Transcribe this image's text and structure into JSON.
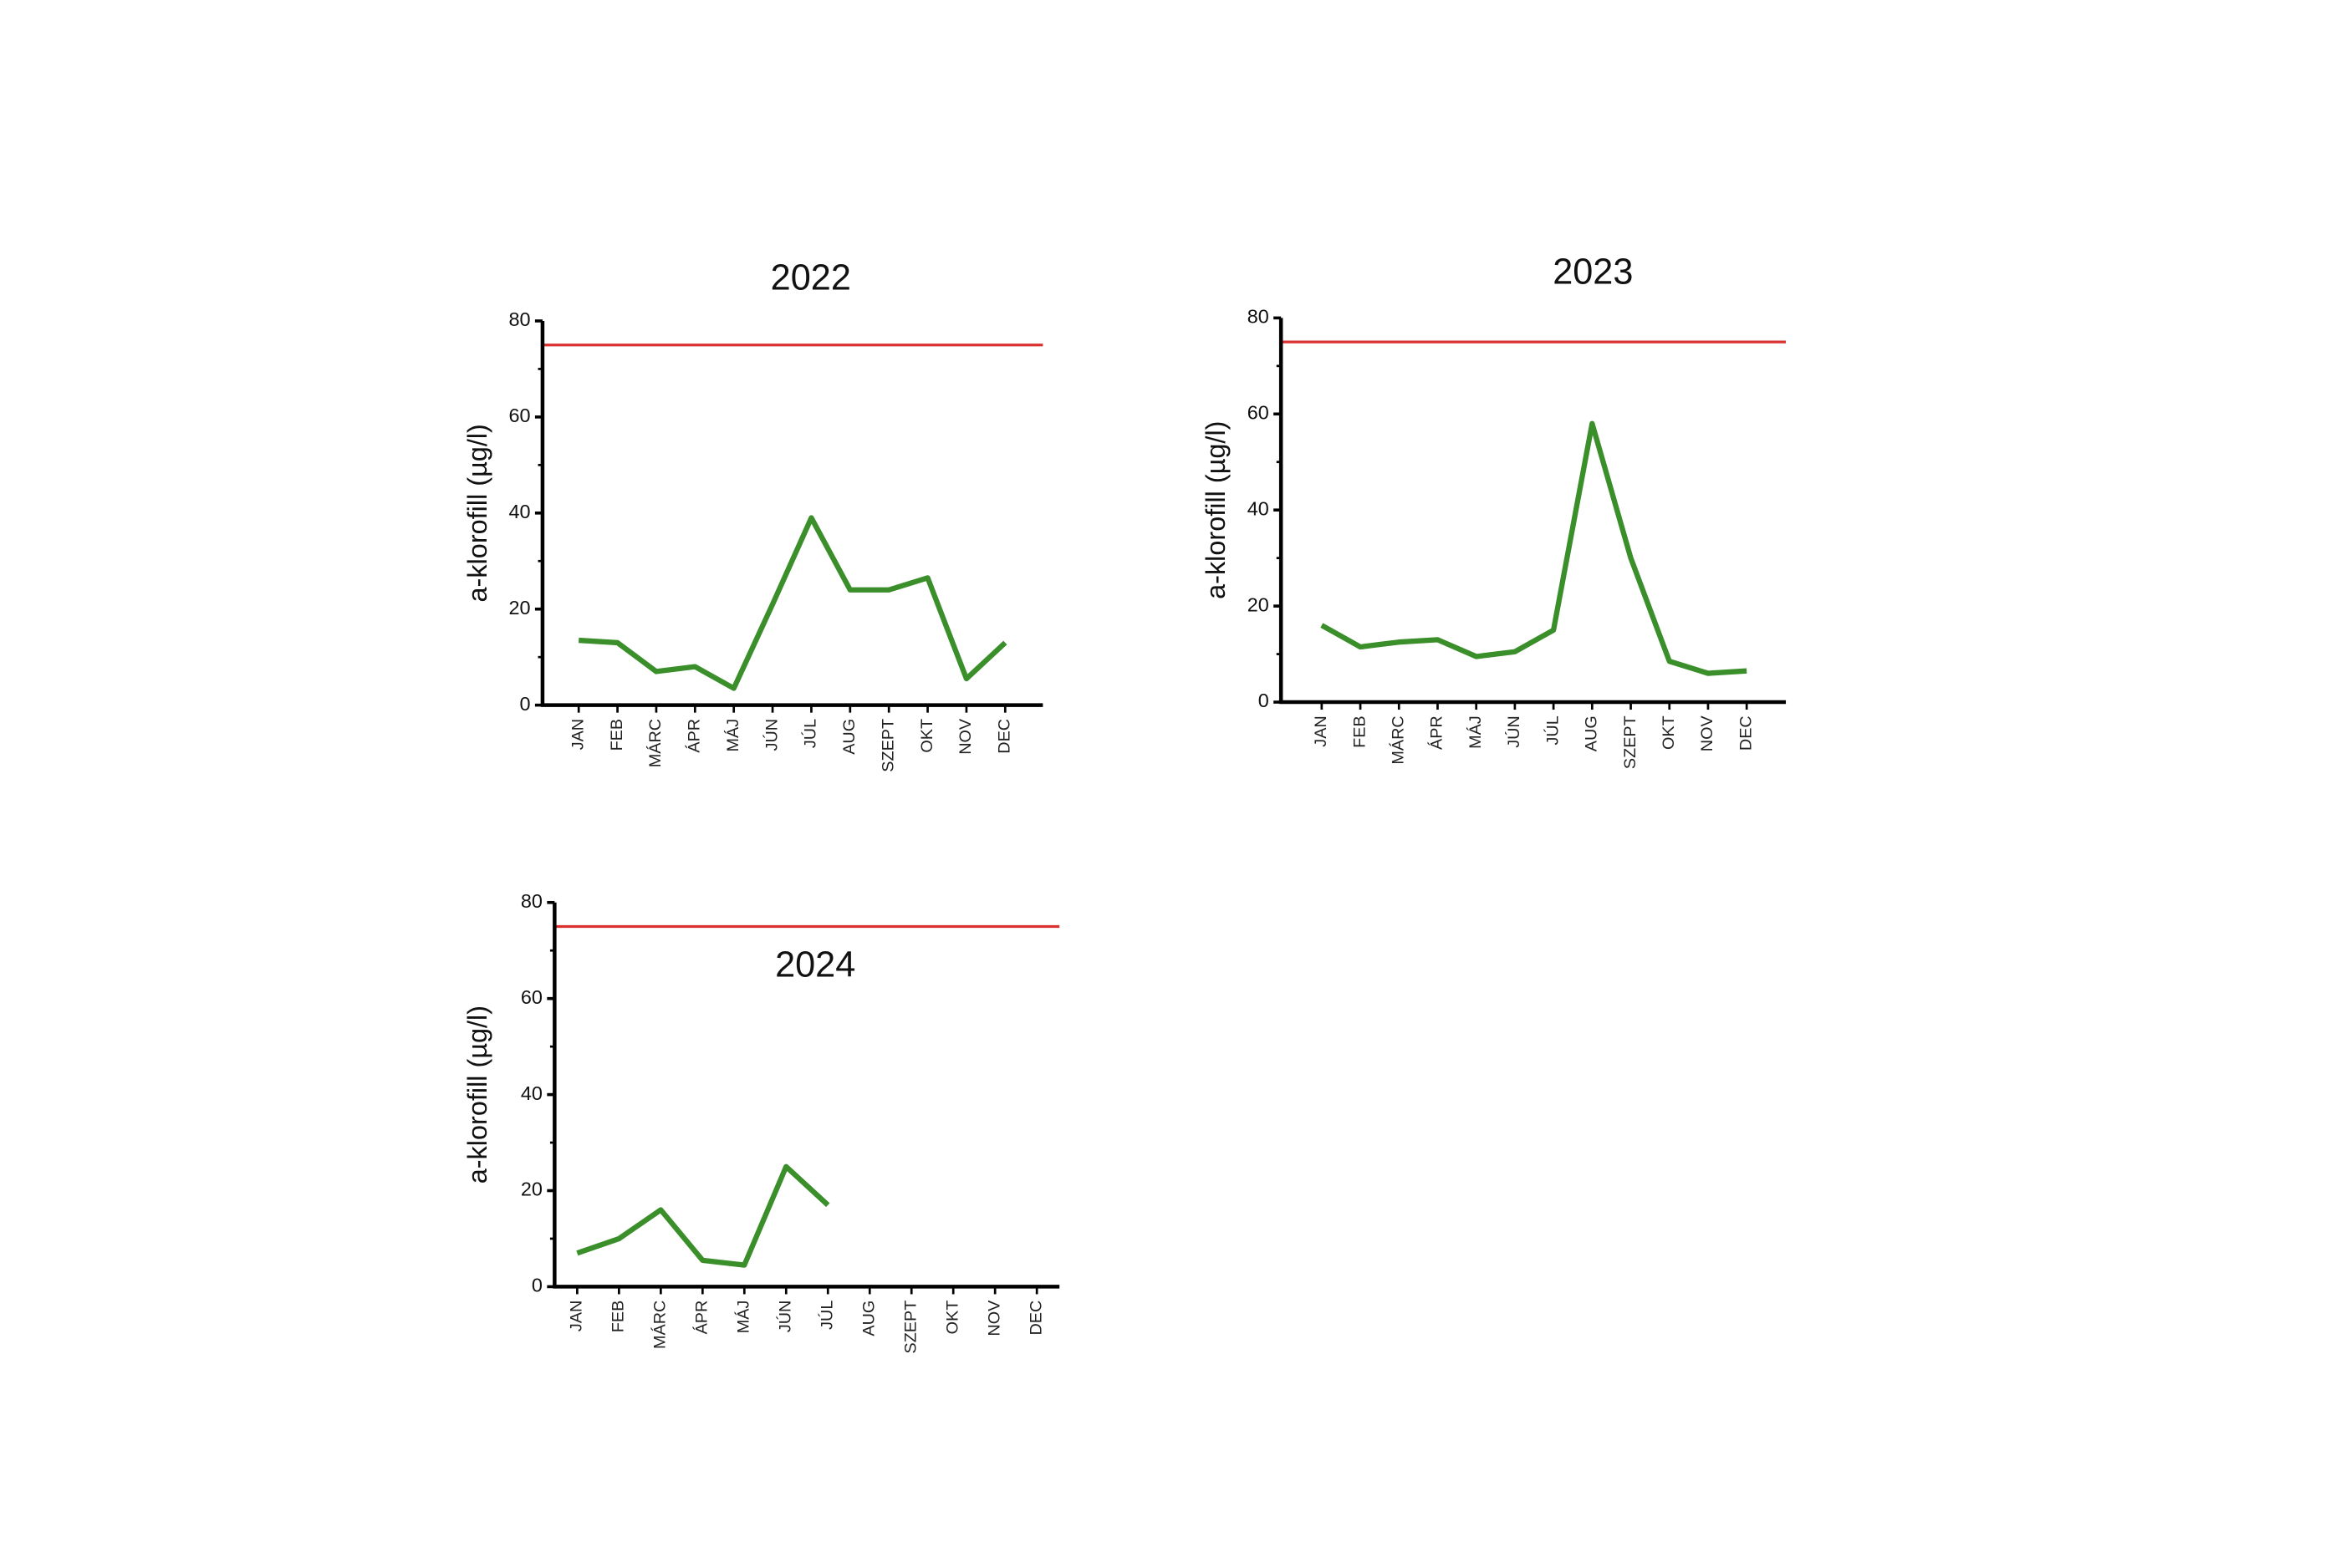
{
  "chart_data": [
    {
      "type": "line",
      "title": "2022",
      "ylabel": "a-klorofill (µg/l)",
      "categories": [
        "JAN",
        "FEB",
        "MÁRC",
        "ÁPR",
        "MÁJ",
        "JÚN",
        "JÚL",
        "AUG",
        "SZEPT",
        "OKT",
        "NOV",
        "DEC"
      ],
      "values": [
        13.5,
        13,
        7,
        8,
        3.5,
        21,
        39,
        24,
        24,
        26.5,
        5.5,
        13
      ],
      "color": "#3a8f2a",
      "ylim": [
        0,
        80
      ],
      "yticks": [
        0,
        20,
        40,
        60,
        80
      ],
      "yticks_minor": [
        10,
        30,
        50,
        70
      ],
      "reference_line": {
        "value": 75,
        "color": "#d93030"
      }
    },
    {
      "type": "line",
      "title": "2023",
      "ylabel": "a-klorofill (µg/l)",
      "categories": [
        "JAN",
        "FEB",
        "MÁRC",
        "ÁPR",
        "MÁJ",
        "JÚN",
        "JÚL",
        "AUG",
        "SZEPT",
        "OKT",
        "NOV",
        "DEC"
      ],
      "values": [
        16,
        11.5,
        12.5,
        13,
        9.5,
        10.5,
        15,
        58,
        30,
        8.5,
        6,
        6.5
      ],
      "color": "#3a8f2a",
      "ylim": [
        0,
        80
      ],
      "yticks": [
        0,
        20,
        40,
        60,
        80
      ],
      "yticks_minor": [
        10,
        30,
        50,
        70
      ],
      "reference_line": {
        "value": 75,
        "color": "#d93030"
      }
    },
    {
      "type": "line",
      "title": "2024",
      "ylabel": "a-klorofill (µg/l)",
      "categories": [
        "JAN",
        "FEB",
        "MÁRC",
        "ÁPR",
        "MÁJ",
        "JÚN",
        "JÚL",
        "AUG",
        "SZEPT",
        "OKT",
        "NOV",
        "DEC"
      ],
      "values": [
        7,
        10,
        16,
        5.5,
        4.5,
        25,
        17,
        null,
        null,
        null,
        null,
        null
      ],
      "color": "#3a8f2a",
      "ylim": [
        0,
        80
      ],
      "yticks": [
        0,
        20,
        40,
        60,
        80
      ],
      "yticks_minor": [
        10,
        30,
        50,
        70
      ],
      "reference_line": {
        "value": 75,
        "color": "#d93030"
      }
    }
  ]
}
